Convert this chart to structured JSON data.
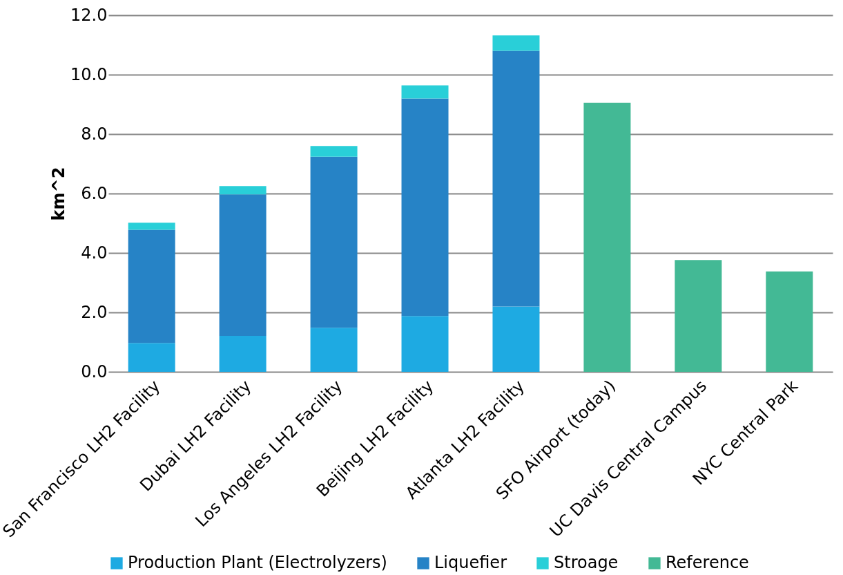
{
  "chart_data": {
    "type": "bar",
    "stacked": true,
    "ylabel": "km^2",
    "categories": [
      "San Francisco LH2 Facility",
      "Dubai LH2 Facility",
      "Los Angeles LH2 Facility",
      "Beijing LH2 Facility",
      "Atlanta LH2 Facility",
      "SFO Airport  (today)",
      "UC Davis Central Campus",
      "NYC Central Park"
    ],
    "series": [
      {
        "name": "Production Plant (Electrolyzers)",
        "color": "#1eaae2",
        "values": [
          0.97,
          1.21,
          1.48,
          1.88,
          2.2,
          null,
          null,
          null
        ]
      },
      {
        "name": "Liquefier",
        "color": "#2683c6",
        "values": [
          3.81,
          4.76,
          5.76,
          7.32,
          8.6,
          null,
          null,
          null
        ]
      },
      {
        "name": "Stroage",
        "color": "#29cfd8",
        "values": [
          0.24,
          0.28,
          0.36,
          0.44,
          0.52,
          null,
          null,
          null
        ]
      },
      {
        "name": "Reference",
        "color": "#43b995",
        "values": [
          null,
          null,
          null,
          null,
          null,
          9.05,
          3.76,
          3.38
        ]
      }
    ],
    "ylim": [
      0,
      12
    ],
    "yticks": [
      {
        "value": 0,
        "label": "0.0"
      },
      {
        "value": 2,
        "label": "2.0"
      },
      {
        "value": 4,
        "label": "4.0"
      },
      {
        "value": 6,
        "label": "6.0"
      },
      {
        "value": 8,
        "label": "8.0"
      },
      {
        "value": 10,
        "label": "10.0"
      },
      {
        "value": 12,
        "label": "12.0"
      }
    ],
    "grid": "y",
    "legend": "bottom"
  }
}
